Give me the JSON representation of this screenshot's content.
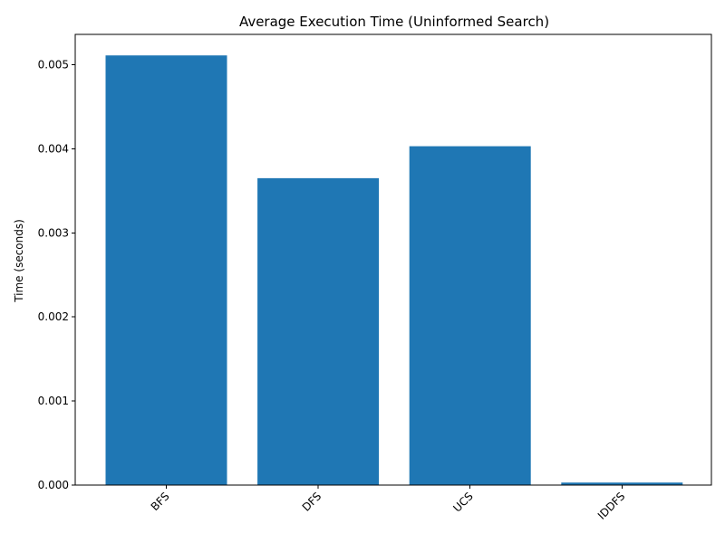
{
  "chart_data": {
    "type": "bar",
    "title": "Average Execution Time (Uninformed Search)",
    "xlabel": "",
    "ylabel": "Time (seconds)",
    "categories": [
      "BFS",
      "DFS",
      "UCS",
      "IDDFS"
    ],
    "values": [
      0.00511,
      0.00365,
      0.00403,
      3e-05
    ],
    "ylim": [
      0,
      0.00536
    ],
    "yticks": [
      0.0,
      0.001,
      0.002,
      0.003,
      0.004,
      0.005
    ],
    "ytick_labels": [
      "0.000",
      "0.001",
      "0.002",
      "0.003",
      "0.004",
      "0.005"
    ],
    "bar_color": "#1f77b4",
    "grid": false,
    "legend": "none"
  }
}
